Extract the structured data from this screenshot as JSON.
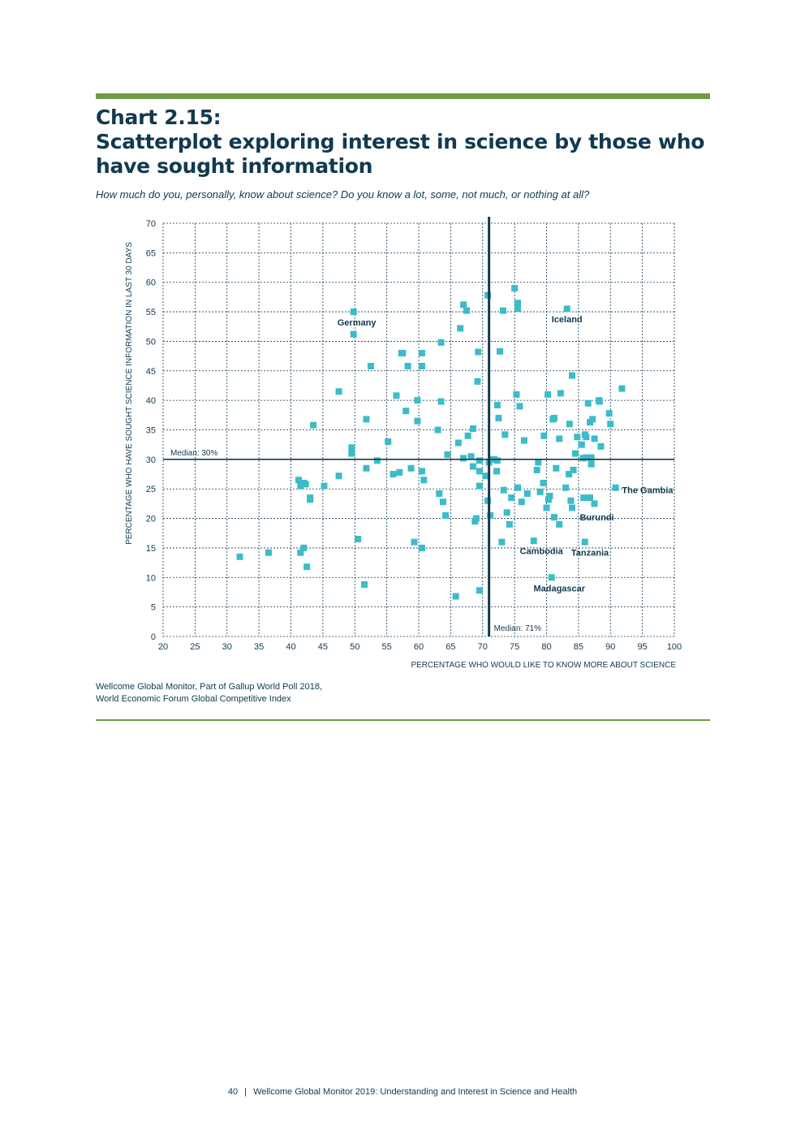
{
  "header": {
    "title_line1": "Chart 2.15:",
    "title_line2": "Scatterplot exploring interest in science by those who",
    "title_line3": "have sought information",
    "subtitle": "How much do you, personally, know about science? Do you know a lot, some, not much, or nothing at all?"
  },
  "chart_data": {
    "type": "scatter",
    "title": "Scatterplot exploring interest in science by those who have sought information",
    "xlabel": "PERCENTAGE WHO WOULD LIKE TO KNOW MORE ABOUT SCIENCE",
    "ylabel": "PERCENTAGE WHO HAVE SOUGHT SCIENCE INFORMATION IN LAST 30 DAYS",
    "xlim": [
      20,
      100
    ],
    "ylim": [
      0,
      70
    ],
    "xticks": [
      20,
      25,
      30,
      35,
      40,
      45,
      50,
      55,
      60,
      65,
      70,
      75,
      80,
      85,
      90,
      95,
      100
    ],
    "yticks": [
      0,
      5,
      10,
      15,
      20,
      25,
      30,
      35,
      40,
      45,
      50,
      55,
      60,
      65,
      70
    ],
    "grid": true,
    "marker_color": "#3bbcc8",
    "median_x": {
      "value": 71,
      "label": "Median: 71%"
    },
    "median_y": {
      "value": 30,
      "label": "Median: 30%"
    },
    "points": [
      [
        32,
        13.5
      ],
      [
        36.5,
        14.2
      ],
      [
        41.5,
        14.2
      ],
      [
        42,
        15
      ],
      [
        42.5,
        11.8
      ],
      [
        41.2,
        26.5
      ],
      [
        41.5,
        25.5
      ],
      [
        42,
        26
      ],
      [
        42.3,
        25.8
      ],
      [
        43,
        23.5
      ],
      [
        43,
        23.2
      ],
      [
        43.5,
        35.8
      ],
      [
        45.2,
        25.5
      ],
      [
        47.5,
        27.2
      ],
      [
        47.5,
        41.5
      ],
      [
        49.5,
        32
      ],
      [
        49.5,
        31
      ],
      [
        49.8,
        55
      ],
      [
        49.8,
        51.2
      ],
      [
        50.5,
        16.5
      ],
      [
        51.5,
        8.8
      ],
      [
        51.8,
        28.5
      ],
      [
        51.8,
        36.8
      ],
      [
        52.5,
        45.8
      ],
      [
        53.5,
        29.8
      ],
      [
        55.2,
        33
      ],
      [
        56,
        27.5
      ],
      [
        56.5,
        40.8
      ],
      [
        57,
        27.8
      ],
      [
        57.3,
        48
      ],
      [
        57.5,
        48
      ],
      [
        58,
        38.2
      ],
      [
        58.3,
        45.8
      ],
      [
        58.8,
        28.5
      ],
      [
        59.3,
        16
      ],
      [
        59.8,
        40
      ],
      [
        59.8,
        36.5
      ],
      [
        60.5,
        48
      ],
      [
        60.5,
        45.8
      ],
      [
        60.5,
        28
      ],
      [
        60.5,
        15
      ],
      [
        60.8,
        26.5
      ],
      [
        63,
        35
      ],
      [
        63.2,
        24.2
      ],
      [
        63.5,
        49.8
      ],
      [
        63.5,
        39.8
      ],
      [
        63.8,
        22.8
      ],
      [
        64.2,
        20.5
      ],
      [
        64.5,
        30.8
      ],
      [
        65.8,
        6.8
      ],
      [
        66.2,
        32.8
      ],
      [
        66.5,
        52.2
      ],
      [
        67,
        56.2
      ],
      [
        67,
        30.2
      ],
      [
        67.5,
        55.2
      ],
      [
        67.7,
        34
      ],
      [
        68.2,
        30.5
      ],
      [
        68.5,
        35.2
      ],
      [
        68.5,
        28.8
      ],
      [
        68.8,
        19.5
      ],
      [
        69,
        20
      ],
      [
        69.2,
        43.2
      ],
      [
        69.3,
        48.2
      ],
      [
        69.5,
        29.8
      ],
      [
        69.5,
        25.5
      ],
      [
        69.5,
        28
      ],
      [
        69.5,
        7.8
      ],
      [
        70.5,
        27.2
      ],
      [
        70.8,
        57.8
      ],
      [
        70.8,
        23
      ],
      [
        71,
        29.5
      ],
      [
        71.2,
        20.5
      ],
      [
        71.5,
        30
      ],
      [
        71.8,
        30
      ],
      [
        72.2,
        28
      ],
      [
        72.3,
        29.8
      ],
      [
        72.3,
        39.2
      ],
      [
        72.5,
        37
      ],
      [
        72.7,
        48.3
      ],
      [
        73,
        16
      ],
      [
        73.2,
        55.2
      ],
      [
        73.3,
        24.8
      ],
      [
        73.5,
        34.2
      ],
      [
        73.8,
        21
      ],
      [
        74.2,
        19
      ],
      [
        74.5,
        23.5
      ],
      [
        75,
        59
      ],
      [
        75.3,
        41
      ],
      [
        75.5,
        56.5
      ],
      [
        75.5,
        55.5
      ],
      [
        75.5,
        25.2
      ],
      [
        75.8,
        39
      ],
      [
        76.1,
        22.8
      ],
      [
        76.5,
        33.2
      ],
      [
        77,
        24.2
      ],
      [
        78,
        16.2
      ],
      [
        78.5,
        28.2
      ],
      [
        78.7,
        29.5
      ],
      [
        79,
        24.5
      ],
      [
        79.5,
        26
      ],
      [
        79.6,
        34
      ],
      [
        80,
        21.8
      ],
      [
        80.2,
        41
      ],
      [
        80.3,
        23.2
      ],
      [
        80.5,
        23.8
      ],
      [
        80.8,
        10
      ],
      [
        81,
        36.8
      ],
      [
        81.2,
        20.2
      ],
      [
        81.2,
        37
      ],
      [
        81.5,
        28.5
      ],
      [
        82,
        19
      ],
      [
        82,
        33.5
      ],
      [
        82.2,
        41.2
      ],
      [
        83,
        25.2
      ],
      [
        83.2,
        55.5
      ],
      [
        83.5,
        27.5
      ],
      [
        83.6,
        36
      ],
      [
        83.8,
        23
      ],
      [
        84,
        44.2
      ],
      [
        84,
        21.8
      ],
      [
        84.2,
        28.2
      ],
      [
        84.5,
        31
      ],
      [
        84.8,
        33.8
      ],
      [
        85.5,
        32.5
      ],
      [
        85.7,
        30.2
      ],
      [
        85.8,
        23.5
      ],
      [
        86,
        34.2
      ],
      [
        86,
        16
      ],
      [
        86.2,
        33.8
      ],
      [
        86.2,
        30.3
      ],
      [
        86.5,
        39.5
      ],
      [
        86.8,
        23.5
      ],
      [
        86.8,
        36.3
      ],
      [
        87,
        30.3
      ],
      [
        87,
        29.2
      ],
      [
        87.2,
        36.8
      ],
      [
        87.5,
        22.5
      ],
      [
        87.5,
        33.5
      ],
      [
        88.2,
        40
      ],
      [
        88.3,
        39.8
      ],
      [
        88.5,
        32.2
      ],
      [
        89.8,
        37.8
      ],
      [
        90,
        36
      ],
      [
        90.8,
        25.2
      ],
      [
        91.8,
        42
      ]
    ],
    "annotations": [
      {
        "label": "Germany",
        "x": 50.3,
        "y": 53.2,
        "anchor": "middle"
      },
      {
        "label": "Iceland",
        "x": 83.2,
        "y": 53.8,
        "anchor": "middle"
      },
      {
        "label": "The Gambia",
        "x": 91.8,
        "y": 24.8,
        "anchor": "start"
      },
      {
        "label": "Burundi",
        "x": 85.2,
        "y": 20.2,
        "anchor": "start"
      },
      {
        "label": "Cambodia",
        "x": 79.2,
        "y": 14.5,
        "anchor": "middle"
      },
      {
        "label": "Tanzania",
        "x": 86.8,
        "y": 14.2,
        "anchor": "middle"
      },
      {
        "label": "Madagascar",
        "x": 82,
        "y": 8.2,
        "anchor": "middle"
      }
    ]
  },
  "source": {
    "line1": "Wellcome Global Monitor, Part of Gallup World Poll 2018,",
    "line2": "World Economic Forum Global Competitive Index"
  },
  "footer": {
    "page_number": "40",
    "separator": "|",
    "text": "Wellcome Global Monitor 2019: Understanding and Interest in Science and Health"
  }
}
